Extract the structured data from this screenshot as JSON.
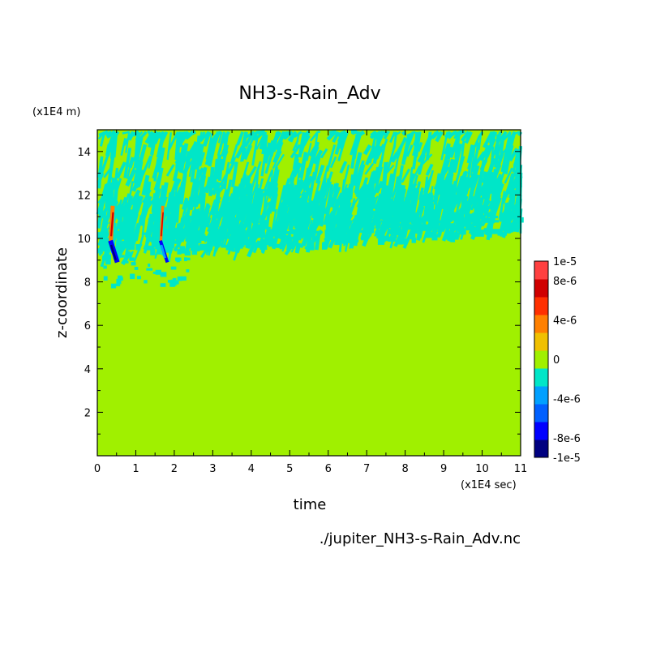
{
  "chart_data": {
    "type": "heatmap",
    "title": "NH3-s-Rain_Adv",
    "xlabel": "time",
    "ylabel": "z-coordinate",
    "x_unit": "(x1E4 sec)",
    "y_unit": "(x1E4 m)",
    "xlim": [
      0,
      11
    ],
    "ylim": [
      0,
      15
    ],
    "x_ticks": [
      "0",
      "1",
      "2",
      "3",
      "4",
      "5",
      "6",
      "7",
      "8",
      "9",
      "10",
      "11"
    ],
    "y_ticks": [
      "2",
      "4",
      "6",
      "8",
      "10",
      "12",
      "14"
    ],
    "colorbar": {
      "ticks": [
        "1e-5",
        "8e-6",
        "4e-6",
        "0",
        "-4e-6",
        "-8e-6",
        "-1e-5"
      ],
      "range": [
        -1e-05,
        1e-05
      ]
    },
    "filename": "./jupiter_NH3-s-Rain_Adv.nc",
    "field_description": {
      "background_value": 0,
      "negative_band_z": [
        8,
        15
      ],
      "strong_feature_times": [
        0.4,
        1.7
      ],
      "strong_feature_z": [
        9.5,
        11.5
      ]
    }
  },
  "colors": {
    "background_level": "#a0f000",
    "levels": [
      "#000080",
      "#0000ff",
      "#0060ff",
      "#00a0ff",
      "#00e6c8",
      "#a0f000",
      "#f0c000",
      "#ff8000",
      "#ff3000",
      "#d00000",
      "#ff4040"
    ]
  }
}
